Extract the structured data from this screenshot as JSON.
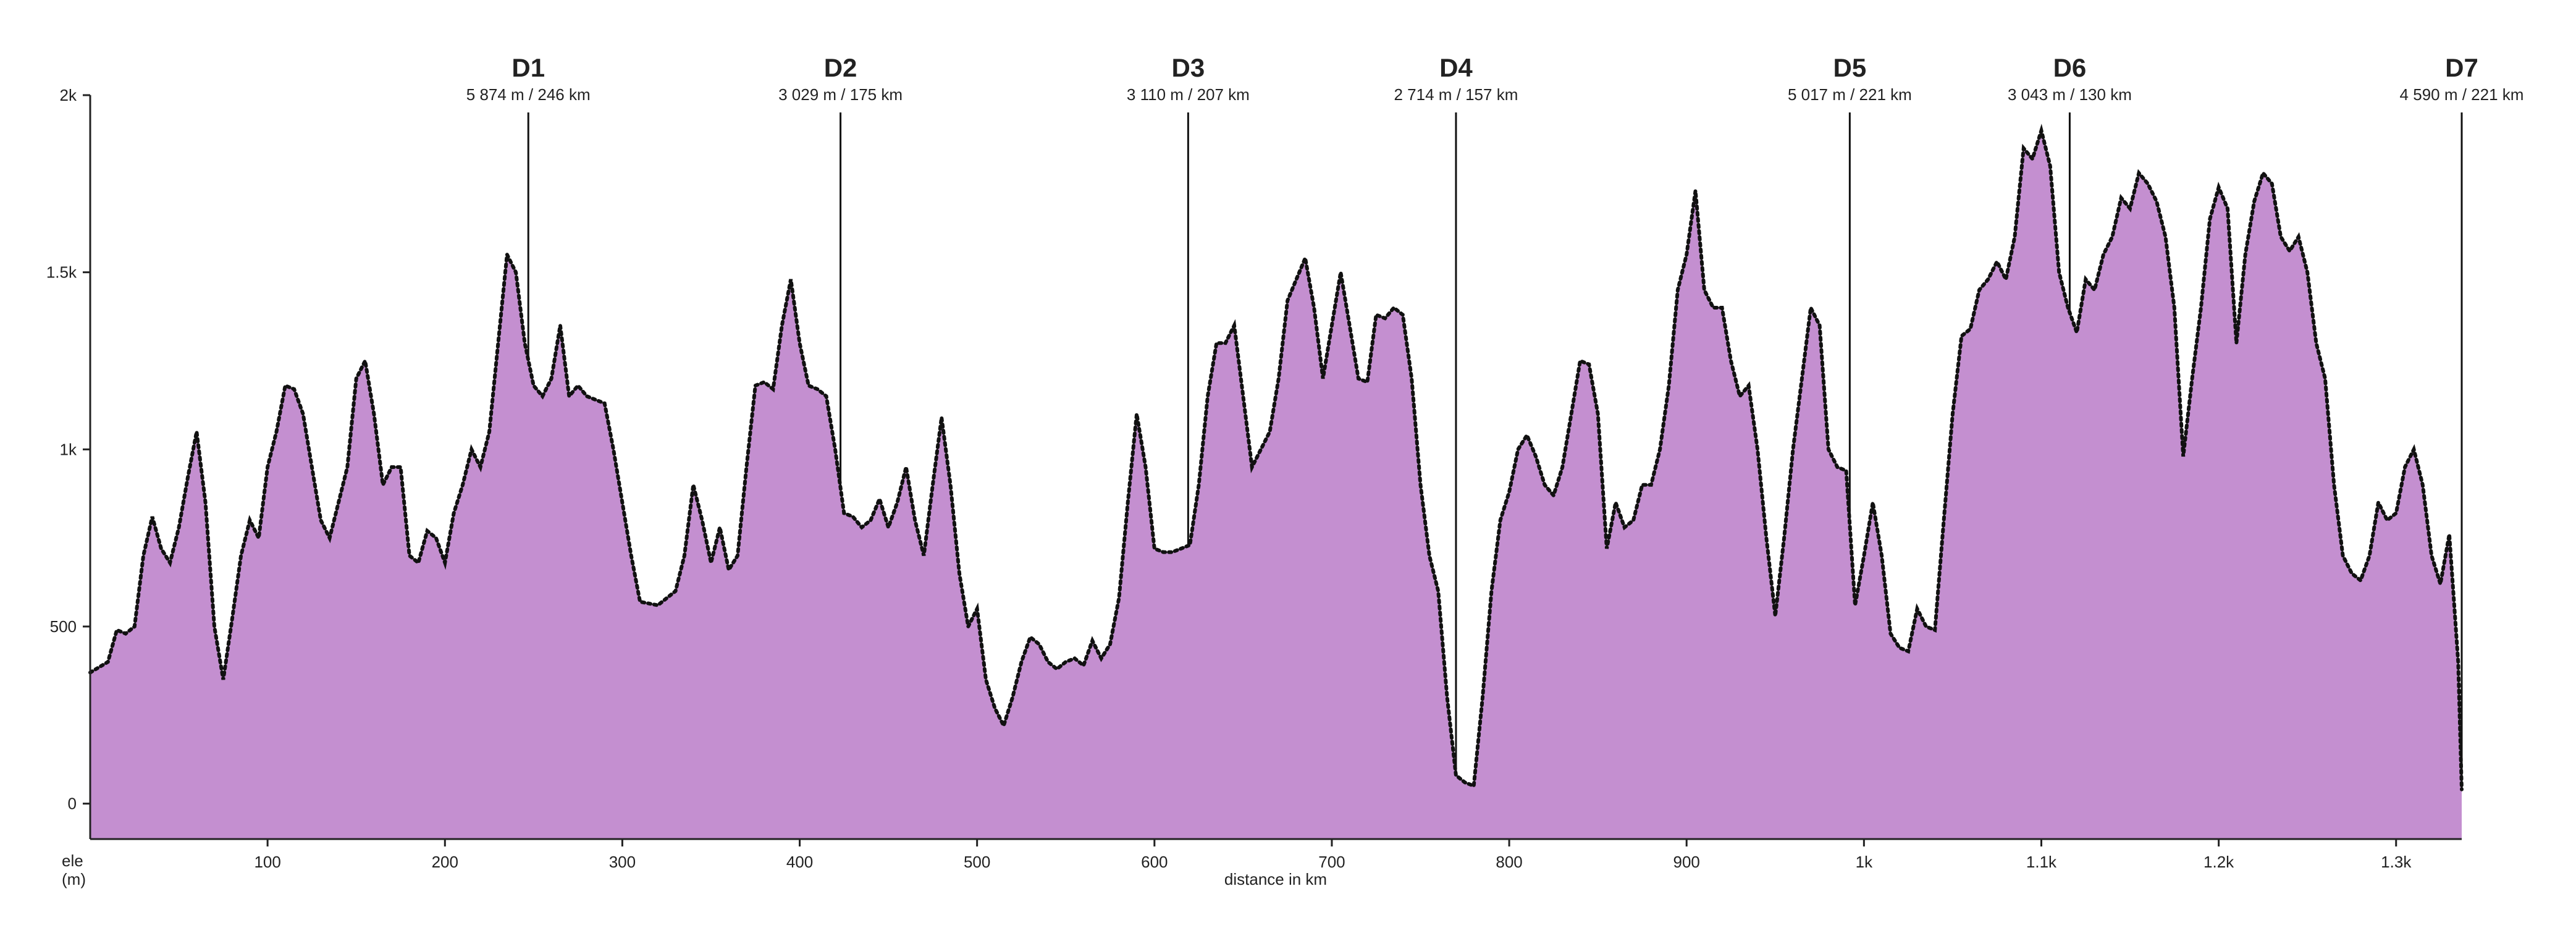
{
  "chart_data": {
    "type": "area",
    "x_label": "distance in km",
    "y_label": [
      "ele",
      "(m)"
    ],
    "color": "#c48fd0",
    "line_color": "#111111",
    "xlim": [
      0,
      1337
    ],
    "ylim": [
      -100,
      2000
    ],
    "xticks": [
      100,
      200,
      300,
      400,
      500,
      600,
      700,
      800,
      900,
      {
        "value": 1000,
        "label": "1k"
      },
      {
        "value": 1100,
        "label": "1.1k"
      },
      {
        "value": 1200,
        "label": "1.2k"
      },
      {
        "value": 1300,
        "label": "1.3k"
      }
    ],
    "yticks": [
      0,
      500,
      {
        "value": 1000,
        "label": "1k"
      },
      {
        "value": 1500,
        "label": "1.5k"
      },
      {
        "value": 2000,
        "label": "2k"
      }
    ],
    "annotations": [
      {
        "x": 247,
        "label": "D1",
        "sublabel": "5 874 m / 246 km"
      },
      {
        "x": 423,
        "label": "D2",
        "sublabel": "3 029 m / 175 km"
      },
      {
        "x": 619,
        "label": "D3",
        "sublabel": "3 110 m / 207 km"
      },
      {
        "x": 770,
        "label": "D4",
        "sublabel": "2 714 m / 157 km"
      },
      {
        "x": 992,
        "label": "D5",
        "sublabel": "5 017 m / 221 km"
      },
      {
        "x": 1116,
        "label": "D6",
        "sublabel": "3 043 m / 130 km"
      },
      {
        "x": 1337,
        "label": "D7",
        "sublabel": "4 590 m / 221 km"
      }
    ],
    "x": [
      0,
      10,
      15,
      20,
      25,
      30,
      35,
      40,
      45,
      50,
      55,
      60,
      65,
      70,
      75,
      80,
      85,
      90,
      95,
      100,
      105,
      110,
      115,
      120,
      125,
      130,
      135,
      140,
      145,
      150,
      155,
      160,
      165,
      170,
      175,
      180,
      185,
      190,
      195,
      200,
      205,
      210,
      215,
      220,
      225,
      230,
      235,
      240,
      245,
      250,
      255,
      260,
      265,
      270,
      275,
      280,
      285,
      290,
      295,
      300,
      305,
      310,
      320,
      330,
      335,
      340,
      345,
      350,
      355,
      360,
      365,
      370,
      375,
      380,
      385,
      390,
      395,
      400,
      405,
      410,
      415,
      420,
      425,
      430,
      435,
      440,
      445,
      450,
      455,
      460,
      465,
      470,
      475,
      480,
      485,
      490,
      495,
      500,
      505,
      510,
      515,
      520,
      525,
      530,
      535,
      540,
      545,
      550,
      555,
      560,
      565,
      570,
      575,
      580,
      585,
      590,
      595,
      600,
      605,
      610,
      615,
      620,
      625,
      630,
      635,
      640,
      645,
      650,
      655,
      660,
      665,
      670,
      675,
      680,
      685,
      690,
      695,
      700,
      705,
      710,
      715,
      720,
      725,
      730,
      735,
      740,
      745,
      750,
      755,
      760,
      765,
      770,
      775,
      780,
      785,
      790,
      795,
      800,
      805,
      810,
      815,
      820,
      825,
      830,
      835,
      840,
      845,
      850,
      855,
      860,
      865,
      870,
      875,
      880,
      885,
      890,
      895,
      900,
      905,
      910,
      915,
      920,
      925,
      930,
      935,
      940,
      945,
      950,
      955,
      960,
      965,
      970,
      975,
      980,
      985,
      990,
      995,
      1000,
      1005,
      1010,
      1015,
      1020,
      1025,
      1030,
      1035,
      1040,
      1045,
      1050,
      1055,
      1060,
      1065,
      1070,
      1075,
      1080,
      1085,
      1090,
      1095,
      1100,
      1105,
      1110,
      1115,
      1120,
      1125,
      1130,
      1135,
      1140,
      1145,
      1150,
      1155,
      1160,
      1165,
      1170,
      1175,
      1180,
      1185,
      1190,
      1195,
      1200,
      1205,
      1210,
      1215,
      1220,
      1225,
      1230,
      1235,
      1240,
      1245,
      1250,
      1255,
      1260,
      1265,
      1270,
      1275,
      1280,
      1285,
      1290,
      1295,
      1300,
      1305,
      1310,
      1315,
      1320,
      1325,
      1330,
      1335,
      1337
    ],
    "values": [
      370,
      400,
      490,
      480,
      500,
      700,
      810,
      720,
      680,
      780,
      920,
      1050,
      850,
      500,
      350,
      520,
      700,
      800,
      750,
      950,
      1050,
      1180,
      1170,
      1100,
      950,
      800,
      750,
      850,
      950,
      1200,
      1250,
      1100,
      900,
      950,
      950,
      700,
      680,
      770,
      750,
      680,
      820,
      900,
      1000,
      950,
      1050,
      1300,
      1550,
      1500,
      1300,
      1180,
      1150,
      1200,
      1350,
      1150,
      1180,
      1150,
      1140,
      1130,
      1000,
      850,
      700,
      570,
      560,
      600,
      700,
      900,
      800,
      680,
      780,
      660,
      700,
      950,
      1180,
      1190,
      1170,
      1350,
      1480,
      1300,
      1180,
      1170,
      1150,
      1000,
      820,
      810,
      780,
      800,
      860,
      780,
      850,
      950,
      800,
      700,
      900,
      1090,
      900,
      650,
      500,
      550,
      350,
      270,
      220,
      300,
      400,
      470,
      450,
      400,
      380,
      400,
      410,
      390,
      460,
      410,
      450,
      580,
      850,
      1100,
      950,
      720,
      710,
      710,
      720,
      730,
      900,
      1150,
      1300,
      1300,
      1350,
      1150,
      950,
      1000,
      1050,
      1200,
      1420,
      1480,
      1540,
      1400,
      1200,
      1350,
      1500,
      1350,
      1200,
      1190,
      1380,
      1370,
      1400,
      1380,
      1200,
      900,
      700,
      600,
      300,
      80,
      60,
      50,
      300,
      600,
      800,
      880,
      1000,
      1040,
      980,
      900,
      870,
      950,
      1100,
      1250,
      1240,
      1100,
      720,
      850,
      780,
      800,
      900,
      900,
      1000,
      1180,
      1450,
      1550,
      1730,
      1450,
      1400,
      1400,
      1250,
      1150,
      1180,
      1000,
      750,
      530,
      750,
      1000,
      1200,
      1400,
      1350,
      1000,
      950,
      940,
      560,
      700,
      850,
      700,
      480,
      440,
      430,
      550,
      500,
      490,
      800,
      1100,
      1320,
      1340,
      1450,
      1480,
      1530,
      1480,
      1600,
      1850,
      1820,
      1900,
      1800,
      1500,
      1400,
      1330,
      1480,
      1450,
      1550,
      1600,
      1710,
      1680,
      1780,
      1750,
      1700,
      1600,
      1400,
      980,
      1200,
      1400,
      1650,
      1740,
      1680,
      1300,
      1550,
      1700,
      1780,
      1750,
      1600,
      1560,
      1600,
      1500,
      1300,
      1200,
      900,
      700,
      650,
      630,
      700,
      850,
      800,
      820,
      950,
      1000,
      900,
      700,
      620,
      760,
      400,
      40
    ]
  }
}
